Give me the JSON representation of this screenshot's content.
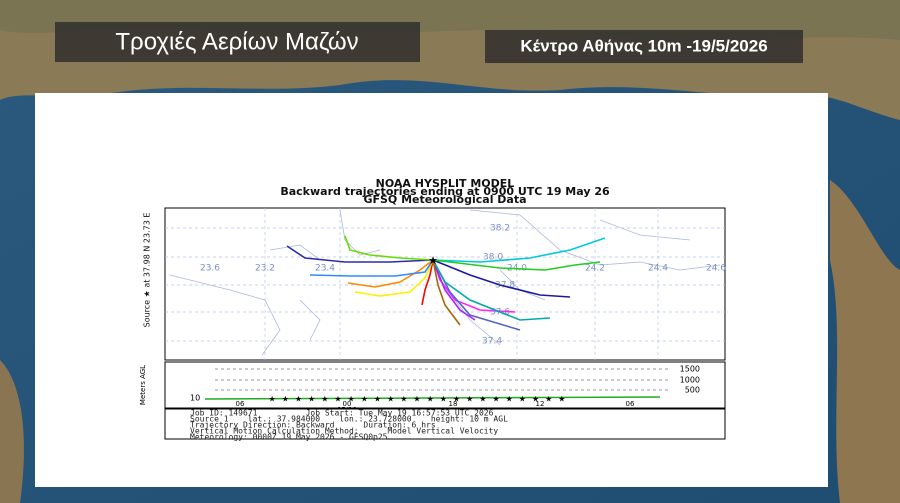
{
  "header": {
    "title": "Τροχιές Αερίων Μαζών",
    "subtitle": "Κέντρο Αθήνας 10m -19/5/2026"
  },
  "plot": {
    "title_lines": [
      "NOAA HYSPLIT MODEL",
      "Backward trajectories ending at 0900 UTC 19 May 26",
      "GFSQ Meteorological Data"
    ],
    "source_label": "Source ★ at 37.98 N  23.73 E",
    "lat_labels": [
      "38.2",
      "38.0",
      "37.8",
      "37.6",
      "37.4"
    ],
    "lon_labels": [
      "23.6",
      "23.2",
      "23.4",
      "24.0",
      "24.2",
      "24.4",
      "24.6"
    ],
    "height_axis_label": "Meters AGL",
    "height_labels": [
      "1500",
      "1000",
      "500"
    ],
    "height_start": "10",
    "time_labels": [
      "06",
      "00",
      "18",
      "12",
      "06"
    ],
    "date_label": "05/19",
    "footer_lines": [
      "Job ID: 149671          Job Start: Tue May 19 16:57:53 UTC 2026",
      "Source 1    lat.: 37.984000    lon.: 23.728000    height: 10 m AGL",
      "Trajectory Direction: Backward      Duration: 6 hrs",
      "Vertical Motion Calculation Method:      Model Vertical Velocity",
      "Meteorology: 0000Z 19 May 2026 - GFSQ0p25"
    ]
  }
}
